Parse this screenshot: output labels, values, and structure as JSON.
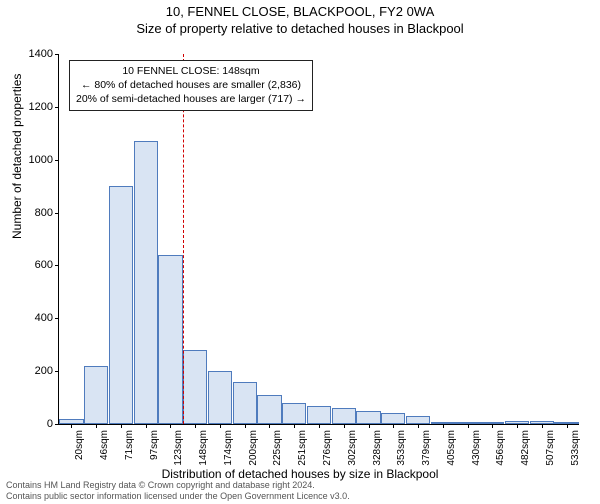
{
  "title": "10, FENNEL CLOSE, BLACKPOOL, FY2 0WA",
  "subtitle": "Size of property relative to detached houses in Blackpool",
  "ylabel": "Number of detached properties",
  "xlabel": "Distribution of detached houses by size in Blackpool",
  "footer_line1": "Contains HM Land Registry data © Crown copyright and database right 2024.",
  "footer_line2": "Contains public sector information licensed under the Open Government Licence v3.0.",
  "chart": {
    "type": "histogram",
    "bar_fill": "#d9e4f3",
    "bar_stroke": "#4f7bbd",
    "bar_stroke_width": 1,
    "background_color": "#ffffff",
    "refline_color": "#d00000",
    "refline_dash": "4,3",
    "ylim": [
      0,
      1400
    ],
    "ytick_step": 200,
    "yticks": [
      0,
      200,
      400,
      600,
      800,
      1000,
      1200,
      1400
    ],
    "xtick_labels": [
      "20sqm",
      "46sqm",
      "71sqm",
      "97sqm",
      "123sqm",
      "148sqm",
      "174sqm",
      "200sqm",
      "225sqm",
      "251sqm",
      "276sqm",
      "302sqm",
      "328sqm",
      "353sqm",
      "379sqm",
      "405sqm",
      "430sqm",
      "456sqm",
      "482sqm",
      "507sqm",
      "533sqm"
    ],
    "values": [
      20,
      220,
      900,
      1070,
      640,
      280,
      200,
      160,
      110,
      80,
      70,
      60,
      50,
      40,
      30,
      5,
      5,
      5,
      10,
      10,
      5
    ],
    "ref_index": 5,
    "annotation": {
      "line1": "10 FENNEL CLOSE: 148sqm",
      "line2": "← 80% of detached houses are smaller (2,836)",
      "line3": "20% of semi-detached houses are larger (717) →"
    },
    "title_fontsize": 13,
    "label_fontsize": 12,
    "tick_fontsize": 11
  }
}
